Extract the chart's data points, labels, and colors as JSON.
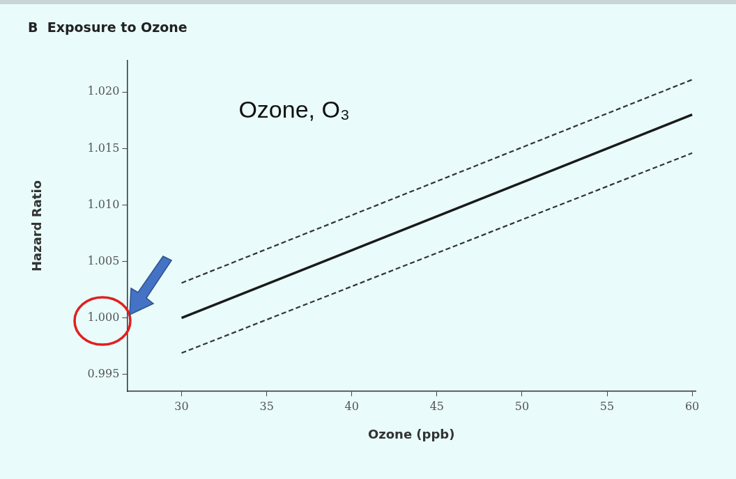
{
  "chart_data": {
    "type": "line",
    "title": "B  Exposure to Ozone",
    "xlabel": "Ozone (ppb)",
    "ylabel": "Hazard Ratio",
    "annotations": [
      "Ozone, O₃"
    ],
    "series": [
      {
        "values": [
          1.0,
          1.018
        ],
        "color": "#1a1a1a",
        "line_style": "solid"
      },
      {
        "values": [
          1.0031,
          1.0211
        ],
        "color": "#333333",
        "line_style": "dashed"
      },
      {
        "values": [
          0.9969,
          1.0146
        ],
        "color": "#333333",
        "line_style": "dashed"
      }
    ],
    "x": [
      30,
      60
    ],
    "xlim": [
      26.8,
      60.2
    ],
    "xticks": [
      30,
      35,
      40,
      45,
      50,
      55,
      60
    ],
    "ylim": [
      0.9935,
      1.0228
    ],
    "yticks": [
      {
        "value": 0.995,
        "label": "0.995"
      },
      {
        "value": 1.0,
        "label": "1.000"
      },
      {
        "value": 1.005,
        "label": "1.005"
      },
      {
        "value": 1.01,
        "label": "1.010"
      },
      {
        "value": 1.015,
        "label": "1.015"
      },
      {
        "value": 1.02,
        "label": "1.020"
      }
    ],
    "grid": false,
    "legend": false,
    "marker": "none"
  }
}
